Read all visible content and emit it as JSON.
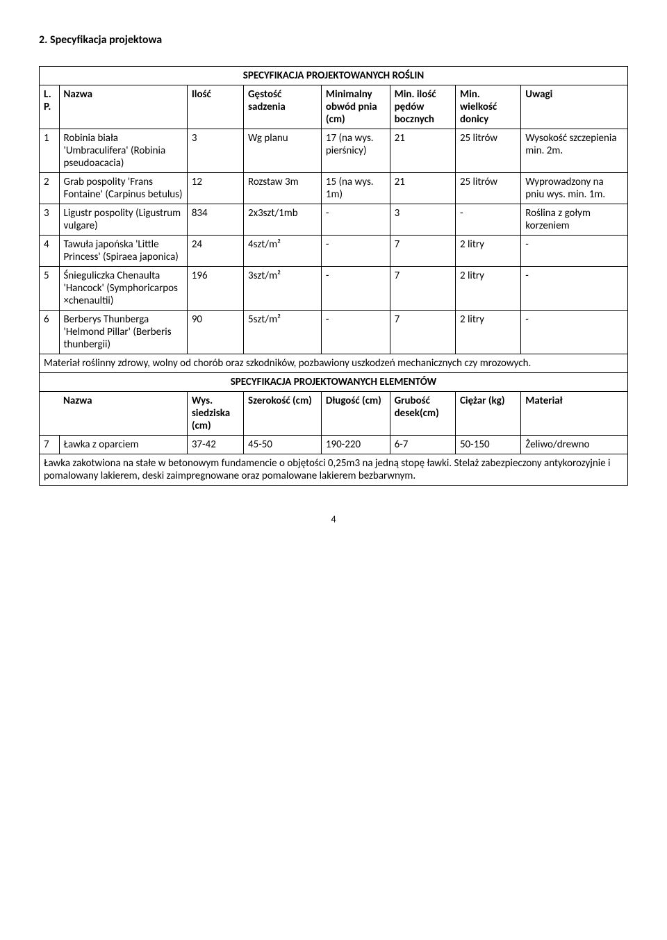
{
  "title": "2. Specyfikacja projektowa",
  "plants": {
    "caption": "SPECYFIKACJA PROJEKTOWANYCH ROŚLIN",
    "headers": {
      "lp": "L.P.",
      "name": "Nazwa",
      "ilosc": "Ilość",
      "gestosc": "Gęstość sadzenia",
      "min_obwod": "Minimalny obwód pnia (cm)",
      "min_pedy": "Min. ilość pędów bocznych",
      "min_donica": "Min. wielkość donicy",
      "uwagi": "Uwagi"
    },
    "rows": [
      {
        "n": "1",
        "name": "Robinia biała 'Umbraculifera' (Robinia pseudoacacia)",
        "ilosc": "3",
        "gest": "Wg planu",
        "c1": "17 (na wys. pierśnicy)",
        "c2": "21",
        "c3": "25 litrów",
        "uw": "Wysokość szczepienia min. 2m."
      },
      {
        "n": "2",
        "name": "Grab pospolity 'Frans Fontaine' (Carpinus betulus)",
        "ilosc": "12",
        "gest": "Rozstaw 3m",
        "c1": "15 (na wys. 1m)",
        "c2": "21",
        "c3": "25 litrów",
        "uw": "Wyprowadzony na pniu wys. min. 1m."
      },
      {
        "n": "3",
        "name": "Ligustr pospolity (Ligustrum vulgare)",
        "ilosc": "834",
        "gest": "2x3szt/1mb",
        "c1": "-",
        "c2": "3",
        "c3": "-",
        "uw": "Roślina z gołym korzeniem"
      },
      {
        "n": "4",
        "name": "Tawuła japońska 'Little Princess' (Spiraea japonica)",
        "ilosc": "24",
        "gest": "4szt/m²",
        "c1": "-",
        "c2": "7",
        "c3": "2 litry",
        "uw": "-"
      },
      {
        "n": "5",
        "name": "Śnieguliczka Chenaulta 'Hancock' (Symphoricarpos ×chenaultii)",
        "ilosc": "196",
        "gest": "3szt/m²",
        "c1": "-",
        "c2": "7",
        "c3": "2 litry",
        "uw": "-"
      },
      {
        "n": "6",
        "name": "Berberys Thunberga 'Helmond Pillar' (Berberis thunbergii)",
        "ilosc": "90",
        "gest": "5szt/m²",
        "c1": "-",
        "c2": "7",
        "c3": "2 litry",
        "uw": "-"
      }
    ],
    "note": "Materiał roślinny zdrowy, wolny od chorób oraz szkodników, pozbawiony uszkodzeń mechanicznych czy mrozowych."
  },
  "elements": {
    "caption": "SPECYFIKACJA PROJEKTOWANYCH ELEMENTÓW",
    "headers": {
      "name": "Nazwa",
      "wys": "Wys. siedziska (cm)",
      "szer": "Szerokość (cm)",
      "dl": "Długość (cm)",
      "grub": "Grubość desek(cm)",
      "ciez": "Ciężar (kg)",
      "mat": "Materiał"
    },
    "rows": [
      {
        "n": "7",
        "name": "Ławka z oparciem",
        "wys": "37-42",
        "szer": "45-50",
        "dl": "190-220",
        "grub": "6-7",
        "ciez": "50-150",
        "mat": "Żeliwo/drewno"
      }
    ],
    "note": "Ławka zakotwiona na stałe w betonowym fundamencie o objętości 0,25m3 na jedną stopę ławki. Stelaż zabezpieczony antykorozyjnie i pomalowany lakierem, deski zaimpregnowane oraz pomalowane lakierem bezbarwnym."
  },
  "page_number": "4"
}
